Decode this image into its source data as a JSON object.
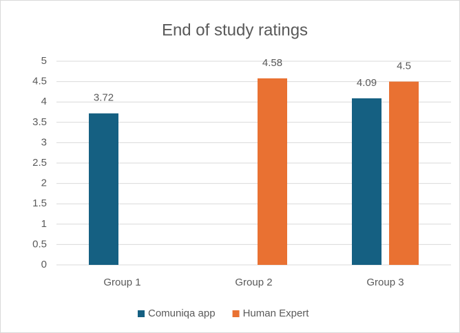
{
  "chart_data": {
    "type": "bar",
    "title": "End of study ratings",
    "categories": [
      "Group 1",
      "Group 2",
      "Group 3"
    ],
    "series": [
      {
        "name": "Comuniqa app",
        "color": "#156082",
        "values": [
          3.72,
          null,
          4.09
        ]
      },
      {
        "name": "Human Expert",
        "color": "#e97132",
        "values": [
          null,
          4.58,
          4.5
        ]
      }
    ],
    "ylim": [
      0,
      5
    ],
    "yticks": [
      0,
      0.5,
      1,
      1.5,
      2,
      2.5,
      3,
      3.5,
      4,
      4.5,
      5
    ],
    "grid": true,
    "legend": "bottom"
  }
}
